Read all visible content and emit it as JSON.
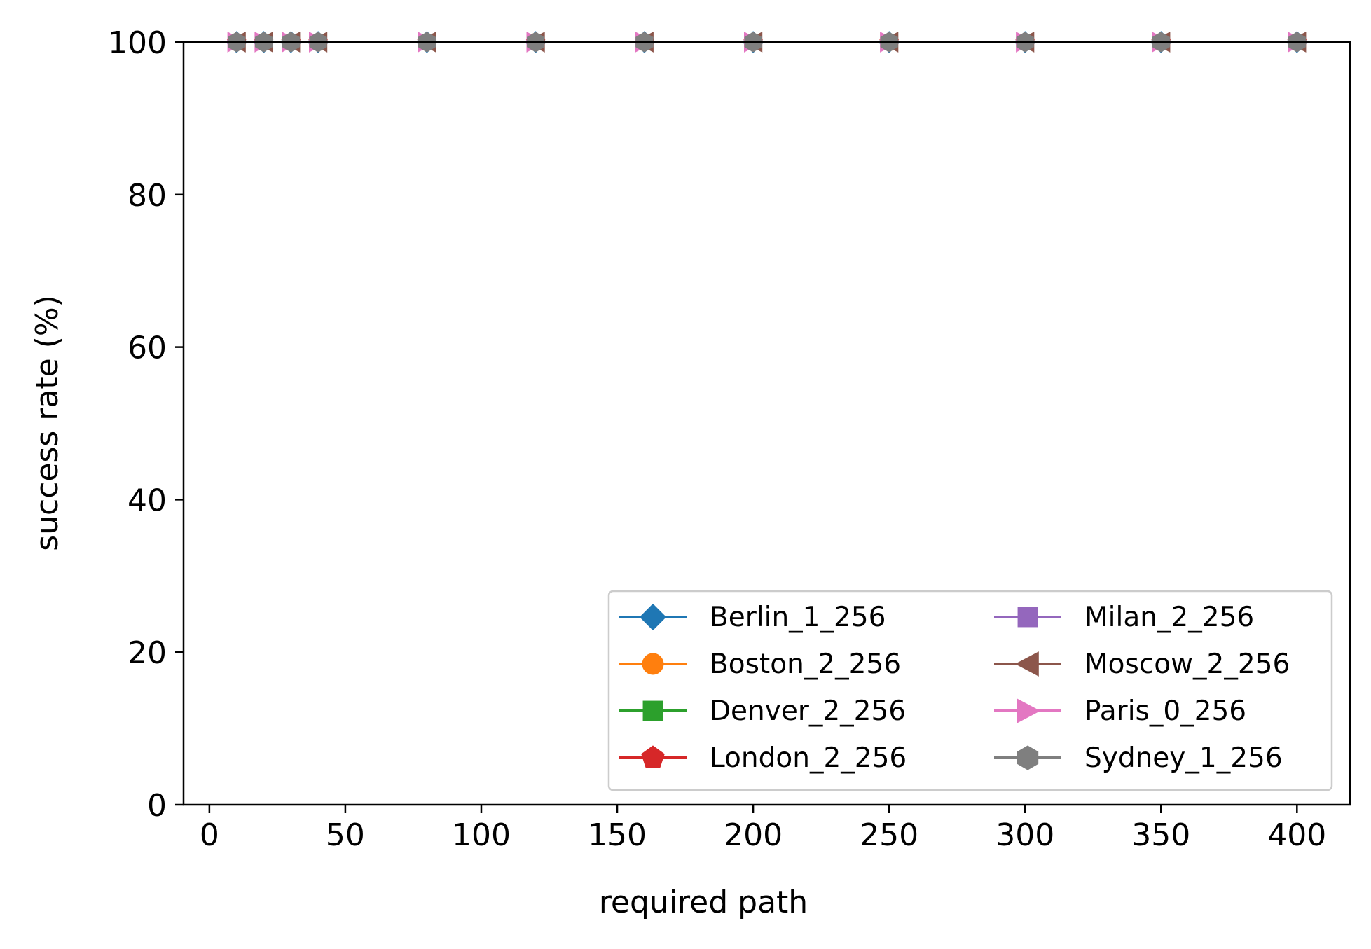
{
  "chart_data": {
    "type": "line",
    "title": "",
    "xlabel": "required path",
    "ylabel": "success rate (%)",
    "xlim": [
      -9.5,
      419.5
    ],
    "ylim": [
      0,
      100
    ],
    "xticks": [
      0,
      50,
      100,
      150,
      200,
      250,
      300,
      350,
      400
    ],
    "yticks": [
      0,
      20,
      40,
      60,
      80,
      100
    ],
    "grid": false,
    "legend_position": "lower-right",
    "legend_columns": 2,
    "x": [
      10,
      20,
      30,
      40,
      80,
      120,
      160,
      200,
      250,
      300,
      350,
      400
    ],
    "series": [
      {
        "name": "Berlin_1_256",
        "color": "#1f77b4",
        "marker": "diamond",
        "values": [
          100,
          100,
          100,
          100,
          100,
          100,
          100,
          100,
          100,
          100,
          100,
          100
        ]
      },
      {
        "name": "Boston_2_256",
        "color": "#ff7f0e",
        "marker": "circle",
        "values": [
          100,
          100,
          100,
          100,
          100,
          100,
          100,
          100,
          100,
          100,
          100,
          100
        ]
      },
      {
        "name": "Denver_2_256",
        "color": "#2ca02c",
        "marker": "square",
        "values": [
          100,
          100,
          100,
          100,
          100,
          100,
          100,
          100,
          100,
          100,
          100,
          100
        ]
      },
      {
        "name": "London_2_256",
        "color": "#d62728",
        "marker": "pentagon",
        "values": [
          100,
          100,
          100,
          100,
          100,
          100,
          100,
          100,
          100,
          100,
          100,
          100
        ]
      },
      {
        "name": "Milan_2_256",
        "color": "#9467bd",
        "marker": "square",
        "values": [
          100,
          100,
          100,
          100,
          100,
          100,
          100,
          100,
          100,
          100,
          100,
          100
        ]
      },
      {
        "name": "Moscow_2_256",
        "color": "#8c564b",
        "marker": "triangle-left",
        "values": [
          100,
          100,
          100,
          100,
          100,
          100,
          100,
          100,
          100,
          100,
          100,
          100
        ]
      },
      {
        "name": "Paris_0_256",
        "color": "#e377c2",
        "marker": "triangle-right",
        "values": [
          100,
          100,
          100,
          100,
          100,
          100,
          100,
          100,
          100,
          100,
          100,
          100
        ]
      },
      {
        "name": "Sydney_1_256",
        "color": "#7f7f7f",
        "marker": "hexagon",
        "values": [
          100,
          100,
          100,
          100,
          100,
          100,
          100,
          100,
          100,
          100,
          100,
          100
        ]
      }
    ]
  }
}
